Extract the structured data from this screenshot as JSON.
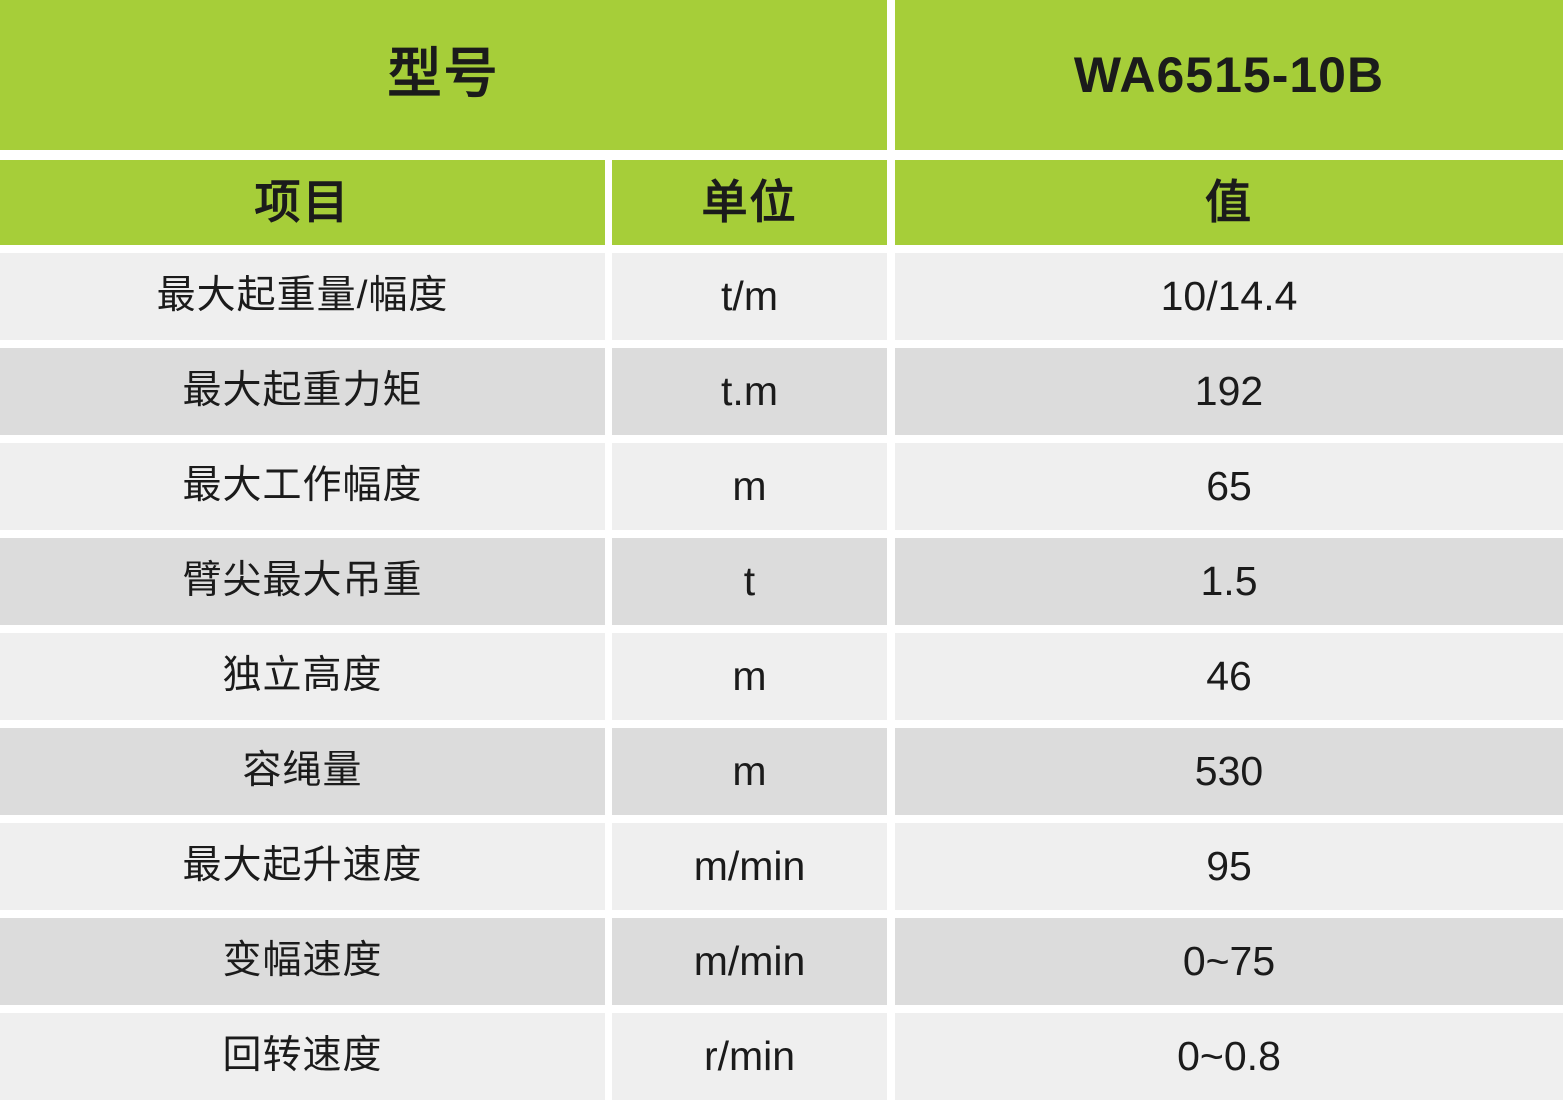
{
  "colors": {
    "header_green": "#a6ce39",
    "row_light": "#efefef",
    "row_dark": "#dcdcdc",
    "text": "#1b1b1b",
    "gutter": "#ffffff"
  },
  "chart_data": {
    "type": "table",
    "header": {
      "model_label": "型号",
      "model_value": "WA6515-10B"
    },
    "columns": [
      "项目",
      "单位",
      "值"
    ],
    "rows": [
      [
        "最大起重量/幅度",
        "t/m",
        "10/14.4"
      ],
      [
        "最大起重力矩",
        "t.m",
        "192"
      ],
      [
        "最大工作幅度",
        "m",
        "65"
      ],
      [
        "臂尖最大吊重",
        "t",
        "1.5"
      ],
      [
        "独立高度",
        "m",
        "46"
      ],
      [
        "容绳量",
        "m",
        "530"
      ],
      [
        "最大起升速度",
        "m/min",
        "95"
      ],
      [
        "变幅速度",
        "m/min",
        "0~75"
      ],
      [
        "回转速度",
        "r/min",
        "0~0.8"
      ]
    ]
  }
}
